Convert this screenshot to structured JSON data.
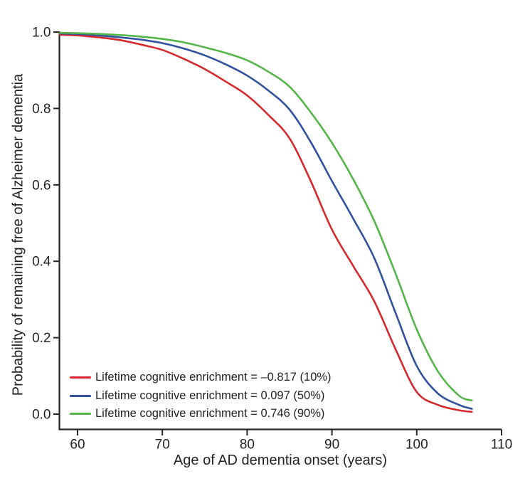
{
  "chart_data": {
    "type": "line",
    "title": "",
    "xlabel": "Age of AD dementia onset (years)",
    "ylabel": "Probability of remaining free of Alzheimer dementia",
    "xlim": [
      57.9,
      110
    ],
    "ylim": [
      0.0,
      1.0
    ],
    "grid": false,
    "legend_position": "inside-bottom-left",
    "axis_color": "#2a2627",
    "text_color": "#262223",
    "x_ticks": [
      60,
      70,
      80,
      90,
      100,
      110
    ],
    "x_tick_labels": [
      "60",
      "70",
      "80",
      "90",
      "100",
      "110"
    ],
    "y_ticks": [
      1.0,
      0.8,
      0.6,
      0.4,
      0.2,
      0.0
    ],
    "y_tick_labels": [
      "1.0",
      "0.8",
      "0.6",
      "0.4",
      "0.2",
      "0.0"
    ],
    "x": [
      57.9,
      60,
      62.5,
      65,
      67.5,
      70,
      72.5,
      75,
      77.5,
      80,
      82.5,
      85,
      87.5,
      90,
      92.5,
      95,
      97.5,
      100,
      102.5,
      105,
      106.5
    ],
    "series": [
      {
        "name": "Lifetime cognitive enrichment = –0.817 (10%)",
        "percentile": "10",
        "color": "#d5292d",
        "values": [
          0.993,
          0.991,
          0.986,
          0.979,
          0.967,
          0.953,
          0.93,
          0.903,
          0.87,
          0.834,
          0.783,
          0.722,
          0.61,
          0.483,
          0.388,
          0.295,
          0.17,
          0.058,
          0.024,
          0.01,
          0.006
        ]
      },
      {
        "name": "Lifetime cognitive enrichment = 0.097 (50%)",
        "percentile": "50",
        "color": "#31519f",
        "values": [
          0.996,
          0.995,
          0.991,
          0.986,
          0.98,
          0.971,
          0.957,
          0.939,
          0.915,
          0.886,
          0.847,
          0.797,
          0.712,
          0.61,
          0.512,
          0.408,
          0.265,
          0.126,
          0.054,
          0.024,
          0.014
        ]
      },
      {
        "name": "Lifetime cognitive enrichment = 0.746 (90%)",
        "percentile": "90",
        "color": "#55b54a",
        "values": [
          0.998,
          0.997,
          0.995,
          0.992,
          0.988,
          0.982,
          0.973,
          0.96,
          0.945,
          0.926,
          0.896,
          0.857,
          0.79,
          0.71,
          0.615,
          0.505,
          0.368,
          0.222,
          0.112,
          0.048,
          0.036
        ]
      }
    ]
  }
}
